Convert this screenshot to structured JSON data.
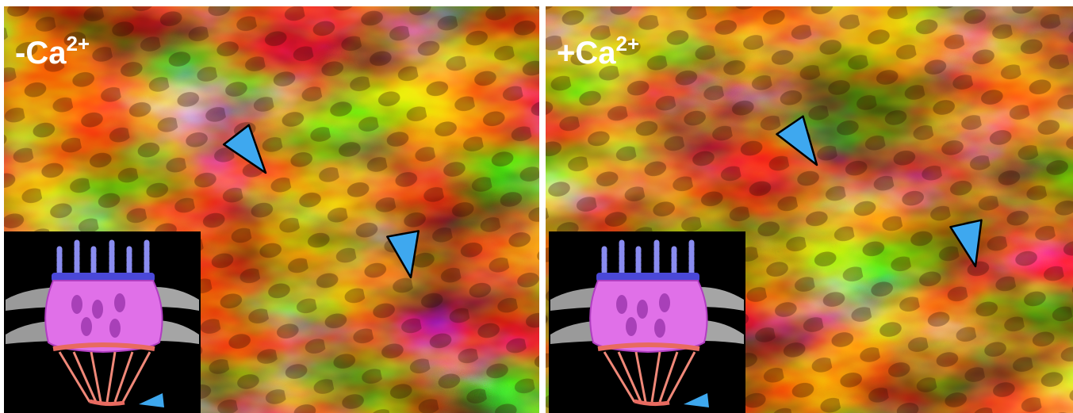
{
  "panels": [
    {
      "label": "-Ca",
      "label_superscript": "2+"
    },
    {
      "label": "+Ca",
      "label_superscript": "2+"
    }
  ]
}
